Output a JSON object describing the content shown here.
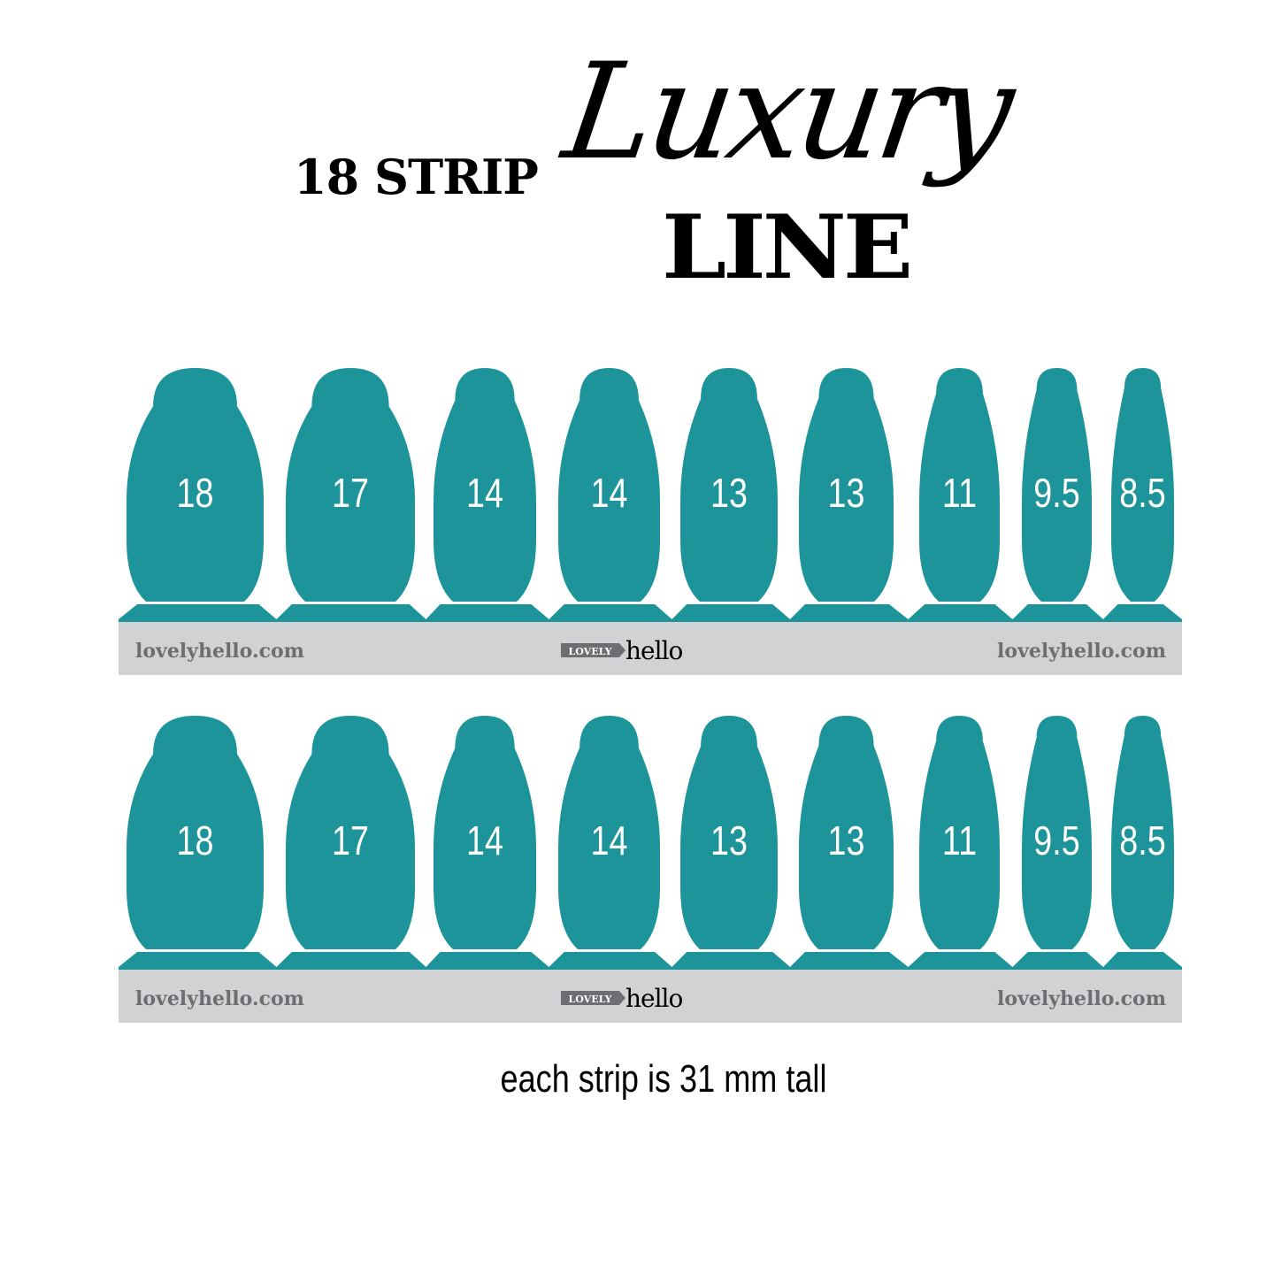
{
  "title": {
    "prefix": "18 STRIP",
    "script": "Luxury",
    "suffix": "LINE"
  },
  "sheets": [
    {
      "sizes": [
        "18",
        "17",
        "14",
        "14",
        "13",
        "13",
        "11",
        "9.5",
        "8.5"
      ],
      "footer_left": "lovelyhello.com",
      "logo_tag": "LOVELY",
      "logo_word": "hello",
      "footer_right": "lovelyhello.com"
    },
    {
      "sizes": [
        "18",
        "17",
        "14",
        "14",
        "13",
        "13",
        "11",
        "9.5",
        "8.5"
      ],
      "footer_left": "lovelyhello.com",
      "logo_tag": "LOVELY",
      "logo_word": "hello",
      "footer_right": "lovelyhello.com"
    }
  ],
  "caption": "each strip is 31 mm tall",
  "colors": {
    "strip": "#1c949a",
    "band": "#d1d2d4",
    "footer_text": "#6d6e71"
  }
}
